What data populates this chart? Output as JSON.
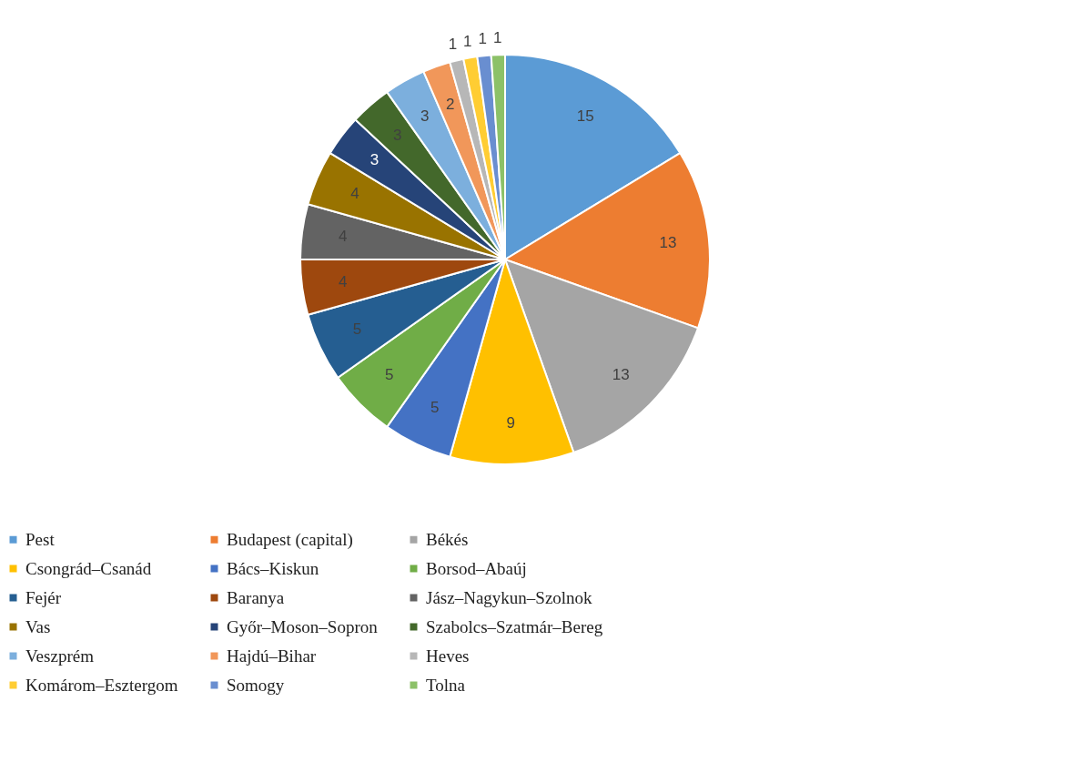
{
  "chart_data": {
    "type": "pie",
    "categories": [
      "Pest",
      "Budapest (capital)",
      "Békés",
      "Csongrád–Csanád",
      "Bács–Kiskun",
      "Borsod–Abaúj",
      "Fejér",
      "Baranya",
      "Jász–Nagykun–Szolnok",
      "Vas",
      "Győr–Moson–Sopron",
      "Szabolcs–Szatmár–Bereg",
      "Veszprém",
      "Hajdú–Bihar",
      "Heves",
      "Komárom–Esztergom",
      "Somogy",
      "Tolna"
    ],
    "values": [
      15,
      13,
      13,
      9,
      5,
      5,
      5,
      4,
      4,
      4,
      3,
      3,
      3,
      2,
      1,
      1,
      1,
      1
    ],
    "colors": [
      "#5b9bd5",
      "#ed7d31",
      "#a5a5a5",
      "#ffc000",
      "#4472c4",
      "#70ad47",
      "#255e91",
      "#9e480e",
      "#636363",
      "#997300",
      "#264478",
      "#43682b",
      "#7cafdd",
      "#f1975a",
      "#b7b7b7",
      "#ffcd33",
      "#698ed0",
      "#8cc168"
    ],
    "data_labels": true,
    "legend": "bottom"
  }
}
